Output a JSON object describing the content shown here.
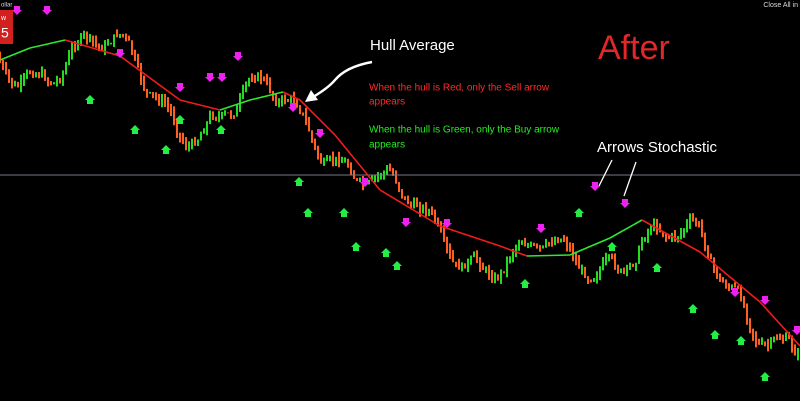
{
  "header": {
    "left_label": "ollar",
    "right_label": "Close All in",
    "badge_top": "w",
    "badge_bottom": "5"
  },
  "annotations": {
    "hull_title": "Hull Average",
    "red_note_1": "When the hull is Red, only the Sell arrow",
    "red_note_2": "appears",
    "green_note_1": "When the hull is Green, only the Buy arrow",
    "green_note_2": "appears",
    "arrows_title": "Arrows Stochastic",
    "after": "After"
  }
}
